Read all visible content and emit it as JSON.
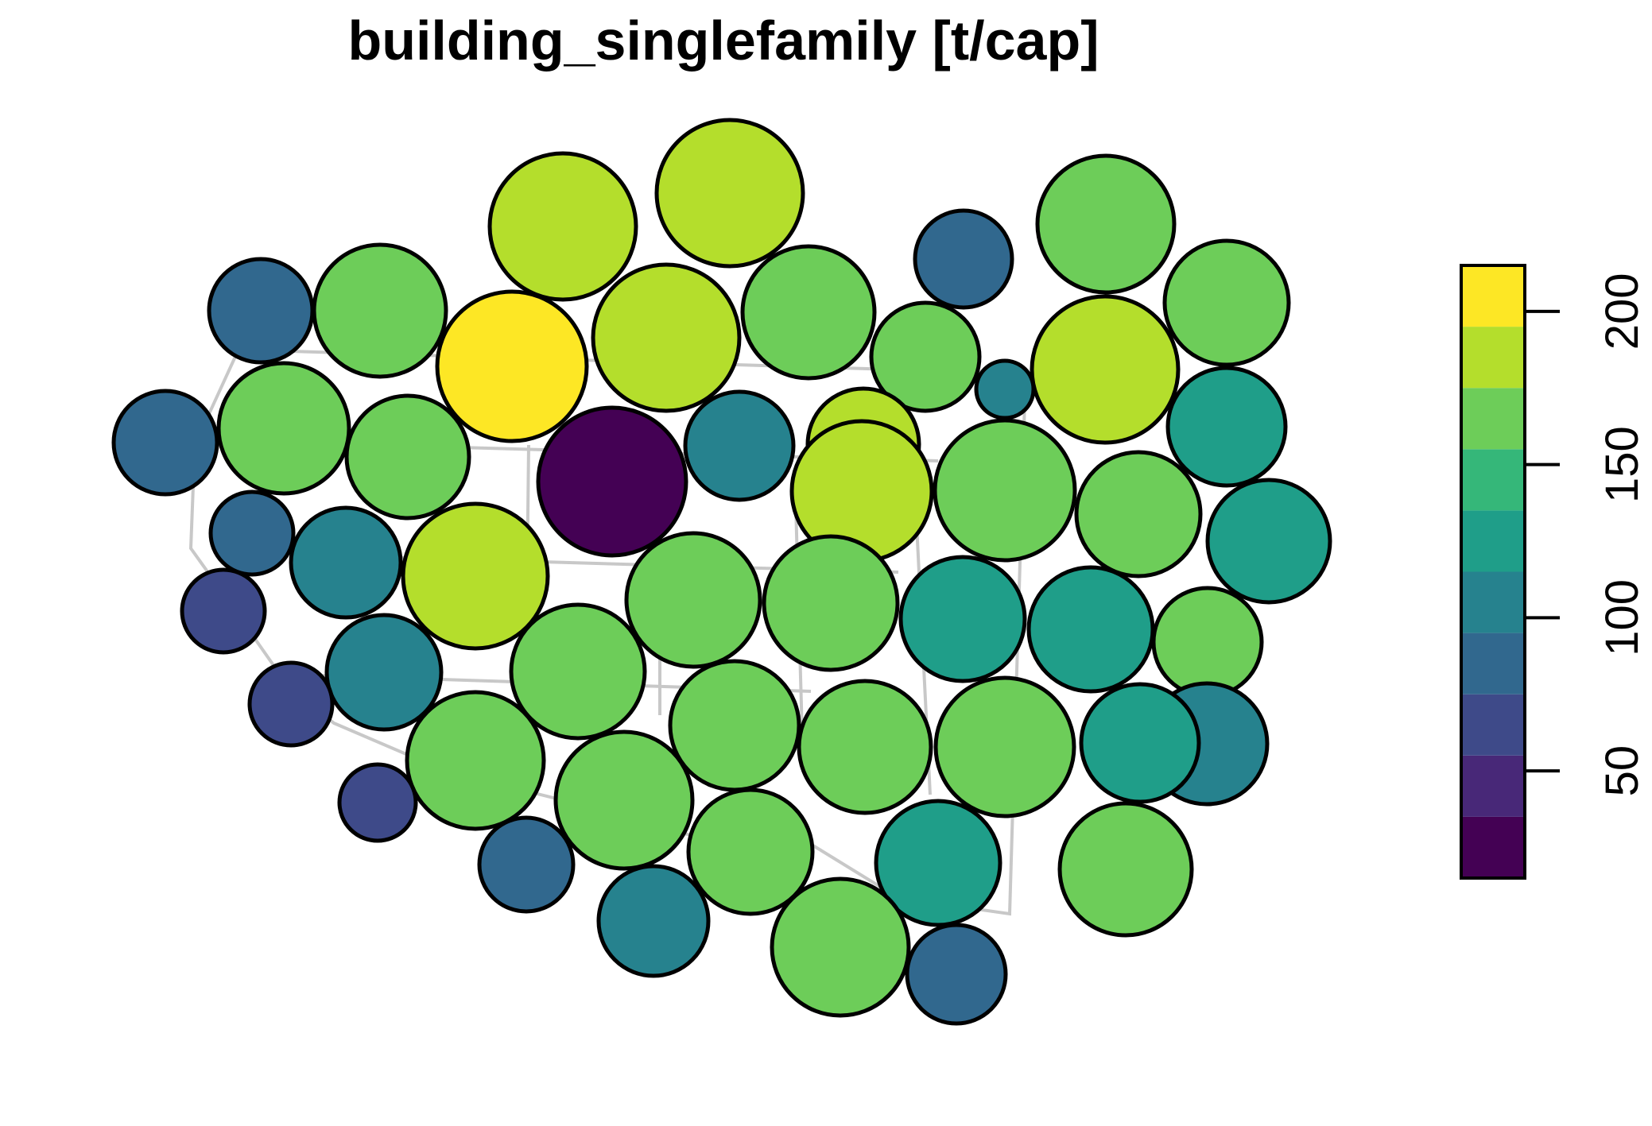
{
  "title": "building_singlefamily [t/cap]",
  "chart_data": {
    "type": "dorling-cartogram",
    "title": "building_singlefamily [t/cap]",
    "variable": "building_singlefamily",
    "unit": "t/cap",
    "legend": {
      "placement": "right",
      "breaks": [
        15,
        35,
        55,
        75,
        95,
        115,
        135,
        155,
        175,
        195,
        215
      ],
      "ticks": [
        50,
        100,
        150,
        200
      ],
      "tick_labels": [
        "50",
        "100",
        "150",
        "200"
      ]
    },
    "palette": [
      "#440154",
      "#482878",
      "#3E4A89",
      "#31688E",
      "#26828E",
      "#1F9E89",
      "#35B779",
      "#6DCD59",
      "#B4DE2C",
      "#FDE725"
    ],
    "regions": [
      {
        "value": 185
      },
      {
        "value": 185
      },
      {
        "value": 168
      },
      {
        "value": 90
      },
      {
        "value": 168
      },
      {
        "value": 90
      },
      {
        "value": 155
      },
      {
        "value": 155
      },
      {
        "value": 210
      },
      {
        "value": 185
      },
      {
        "value": 168
      },
      {
        "value": 110
      },
      {
        "value": 185
      },
      {
        "value": 155
      },
      {
        "value": 25
      },
      {
        "value": 90
      },
      {
        "value": 155
      },
      {
        "value": 130
      },
      {
        "value": 185
      },
      {
        "value": 110
      },
      {
        "value": 168
      },
      {
        "value": 185
      },
      {
        "value": 130
      },
      {
        "value": 155
      },
      {
        "value": 75
      },
      {
        "value": 110
      },
      {
        "value": 185
      },
      {
        "value": 130
      },
      {
        "value": 168
      },
      {
        "value": 168
      },
      {
        "value": 130
      },
      {
        "value": 155
      },
      {
        "value": 55
      },
      {
        "value": 110
      },
      {
        "value": 155
      },
      {
        "value": 110
      },
      {
        "value": 55
      },
      {
        "value": 155
      },
      {
        "value": 155
      },
      {
        "value": 168
      },
      {
        "value": 130
      },
      {
        "value": 168
      },
      {
        "value": 168
      },
      {
        "value": 55
      },
      {
        "value": 75
      },
      {
        "value": 155
      },
      {
        "value": 130
      },
      {
        "value": 155
      },
      {
        "value": 110
      },
      {
        "value": 168
      },
      {
        "value": 90
      }
    ]
  }
}
